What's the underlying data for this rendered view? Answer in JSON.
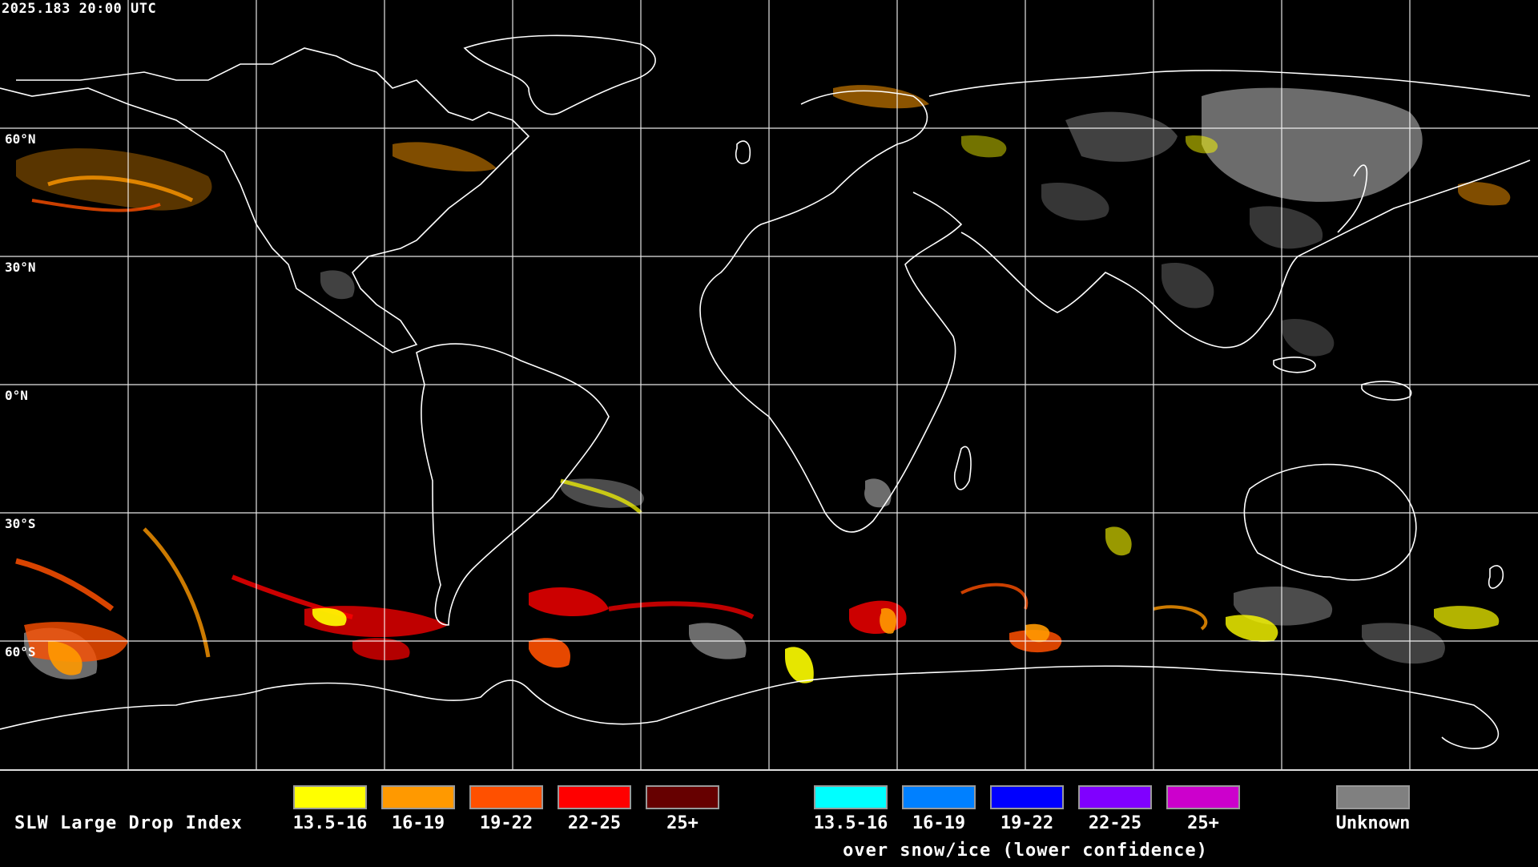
{
  "timestamp": "2025.183 20:00 UTC",
  "lat_labels": [
    "60°N",
    "30°N",
    "0°N",
    "30°S",
    "60°S"
  ],
  "legend": {
    "title": "SLW Large Drop Index",
    "water": [
      {
        "label": "13.5-16",
        "color": "#ffff00"
      },
      {
        "label": "16-19",
        "color": "#ff9900"
      },
      {
        "label": "19-22",
        "color": "#ff5000"
      },
      {
        "label": "22-25",
        "color": "#ff0000"
      },
      {
        "label": "25+",
        "color": "#660000"
      }
    ],
    "snow_ice": [
      {
        "label": "13.5-16",
        "color": "#00ffff"
      },
      {
        "label": "16-19",
        "color": "#0080ff"
      },
      {
        "label": "19-22",
        "color": "#0000ff"
      },
      {
        "label": "22-25",
        "color": "#8000ff"
      },
      {
        "label": "25+",
        "color": "#cc00cc"
      }
    ],
    "snow_ice_note": "over snow/ice (lower confidence)",
    "unknown": {
      "label": "Unknown",
      "color": "#808080"
    }
  },
  "colors": {
    "background": "#000000",
    "gridlines": "#ffffff",
    "coastlines": "#ffffff"
  }
}
